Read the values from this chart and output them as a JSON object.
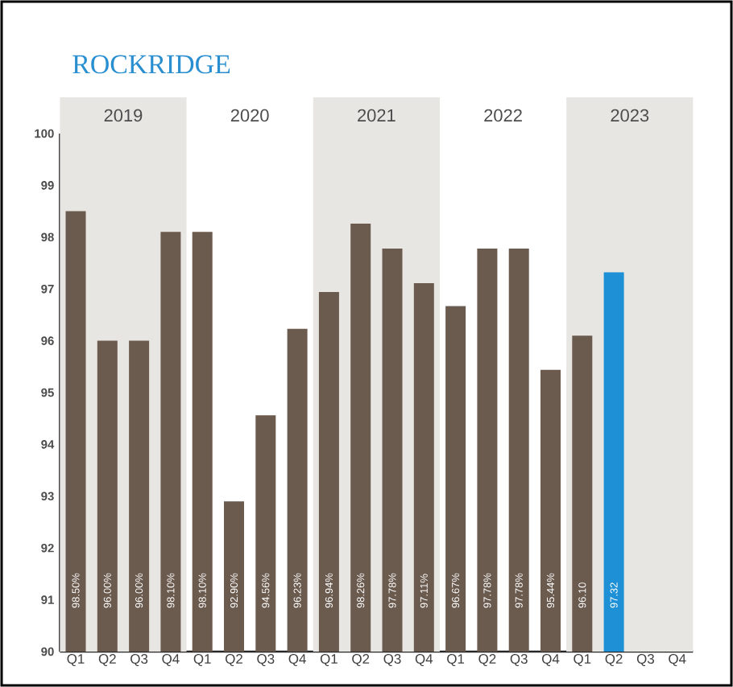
{
  "chart_data": {
    "type": "bar",
    "title": "ROCKRIDGE",
    "categories": [
      "Q1",
      "Q2",
      "Q3",
      "Q4",
      "Q1",
      "Q2",
      "Q3",
      "Q4",
      "Q1",
      "Q2",
      "Q3",
      "Q4",
      "Q1",
      "Q2",
      "Q3",
      "Q4",
      "Q1",
      "Q2",
      "Q3",
      "Q4"
    ],
    "values": [
      98.5,
      96.0,
      96.0,
      98.1,
      98.1,
      92.9,
      94.56,
      96.23,
      96.94,
      98.26,
      97.78,
      97.11,
      96.67,
      97.78,
      97.78,
      95.44,
      96.1,
      97.32,
      null,
      null
    ],
    "colors": [
      "#6b5a4e",
      "#6b5a4e",
      "#6b5a4e",
      "#6b5a4e",
      "#6b5a4e",
      "#6b5a4e",
      "#6b5a4e",
      "#6b5a4e",
      "#6b5a4e",
      "#6b5a4e",
      "#6b5a4e",
      "#6b5a4e",
      "#6b5a4e",
      "#6b5a4e",
      "#6b5a4e",
      "#6b5a4e",
      "#6b5a4e",
      "#1e90d6",
      null,
      null
    ],
    "value_labels": [
      "98.50%",
      "96.00%",
      "96.00%",
      "98.10%",
      "98.10%",
      "92.90%",
      "94.56%",
      "96.23%",
      "96.94%",
      "98.26%",
      "97.78%",
      "97.11%",
      "96.67%",
      "97.78%",
      "97.78%",
      "95.44%",
      "96.10",
      "97.32",
      null,
      null
    ],
    "ylim": [
      90,
      100
    ],
    "yticks": [
      90,
      91,
      92,
      93,
      94,
      95,
      96,
      97,
      98,
      99,
      100
    ],
    "grid": false,
    "annotations": [
      "2019",
      "2020",
      "2021",
      "2022",
      "2023"
    ]
  }
}
